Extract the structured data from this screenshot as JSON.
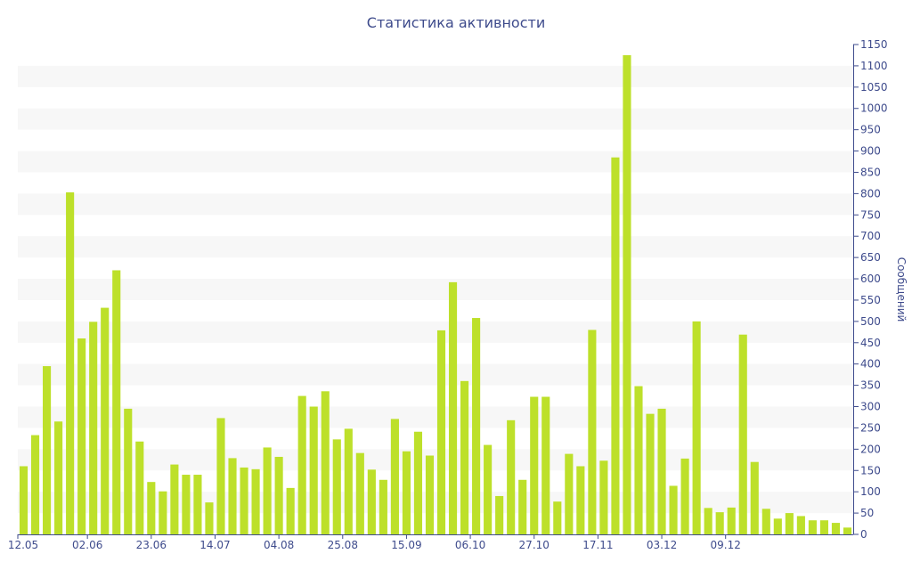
{
  "chart_data": {
    "type": "bar",
    "title": "Статистика активности",
    "xlabel": "",
    "ylabel": "Сообщений",
    "ylim": [
      0,
      1150
    ],
    "ytick_step": 50,
    "grid": "alternating-bands",
    "bar_color": "#bde02a",
    "text_color": "#3e4b8c",
    "band_color": "#f7f7f7",
    "x_tick_labels": [
      "12.05",
      "02.06",
      "23.06",
      "14.07",
      "04.08",
      "25.08",
      "15.09",
      "06.10",
      "27.10",
      "17.11",
      "03.12",
      "09.12"
    ],
    "values": [
      160,
      233,
      395,
      265,
      803,
      460,
      499,
      532,
      620,
      295,
      218,
      123,
      101,
      164,
      140,
      140,
      75,
      273,
      179,
      157,
      153,
      204,
      182,
      109,
      325,
      300,
      336,
      223,
      248,
      191,
      152,
      128,
      271,
      195,
      241,
      185,
      479,
      592,
      360,
      508,
      210,
      90,
      268,
      128,
      323,
      323,
      77,
      189,
      160,
      480,
      173,
      885,
      1125,
      348,
      283,
      295,
      114,
      178,
      500,
      62,
      52,
      63,
      469,
      170,
      60,
      37,
      50,
      43,
      33,
      33,
      27,
      16
    ]
  }
}
